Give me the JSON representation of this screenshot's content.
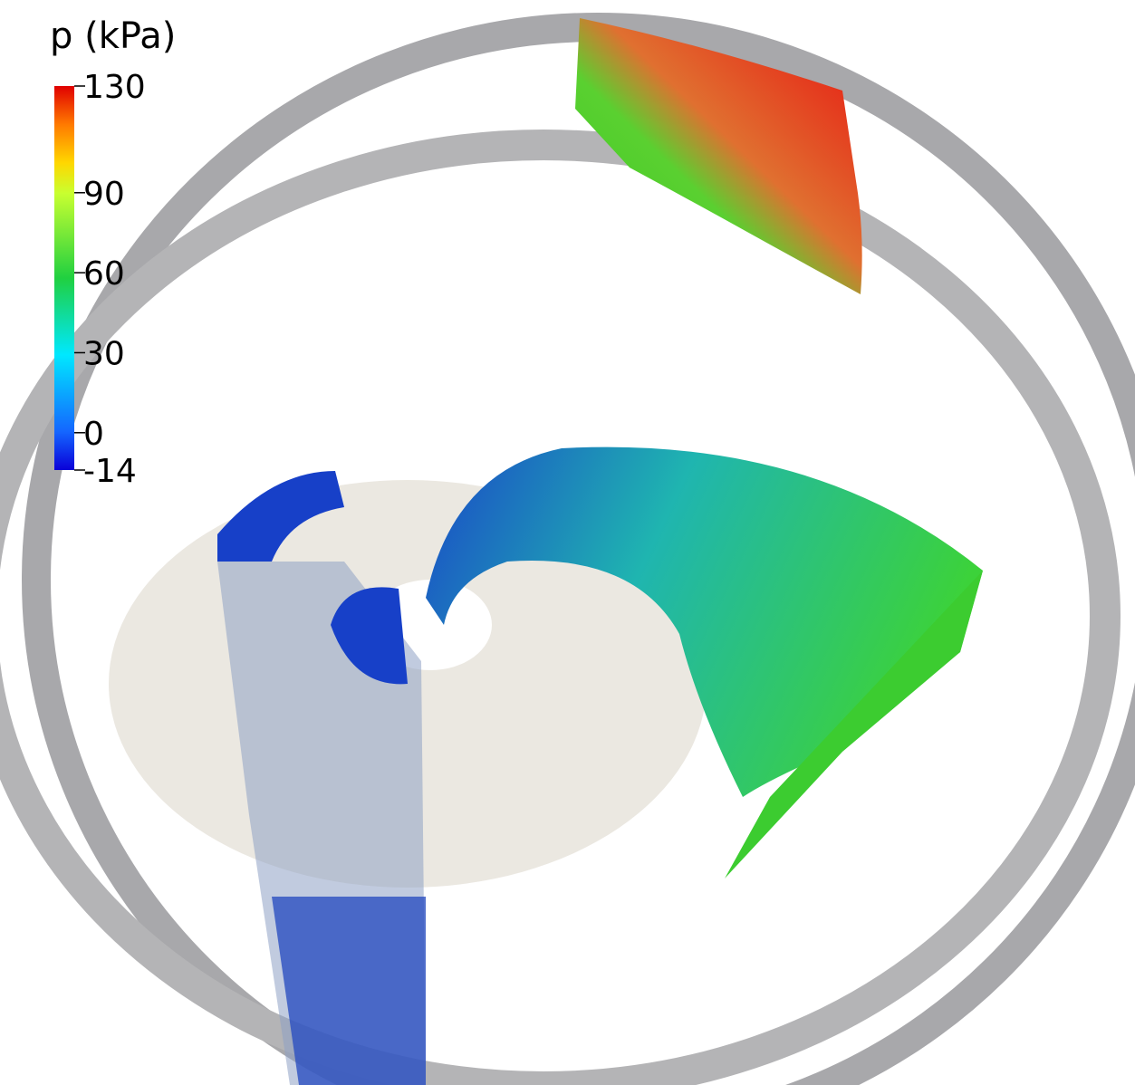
{
  "colorbar": {
    "title": "p  (kPa)",
    "range": [
      -14,
      130
    ],
    "ticks": [
      130,
      90,
      60,
      30,
      0,
      -14
    ]
  }
}
